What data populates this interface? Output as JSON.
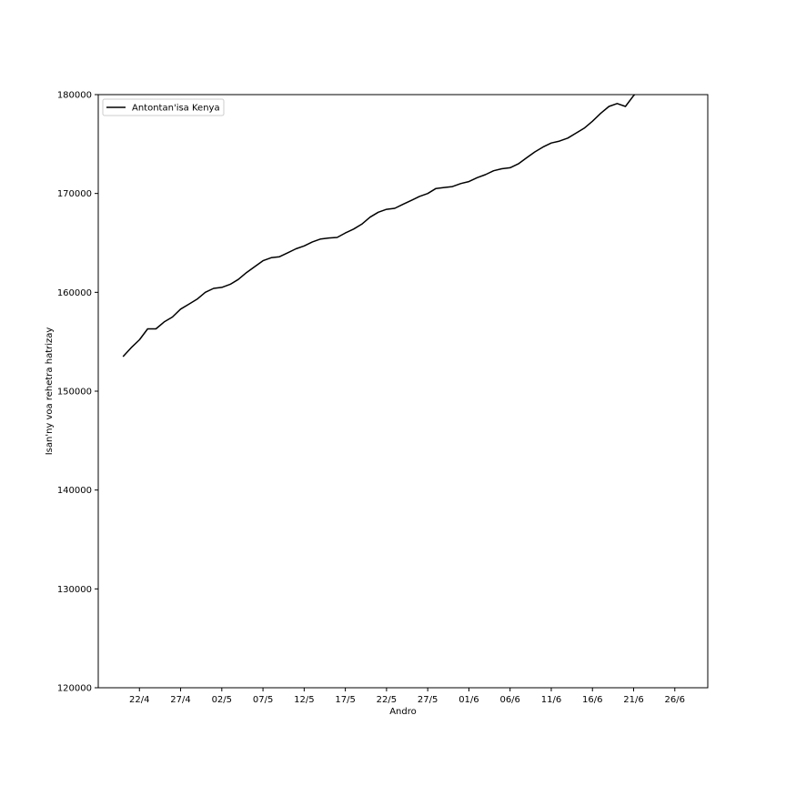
{
  "chart_data": {
    "type": "line",
    "xlabel": "Andro",
    "ylabel": "Isan'ny voa rehetra hatrizay",
    "xlim": [
      "2020-04-17",
      "2020-06-30"
    ],
    "ylim": [
      120000,
      180000
    ],
    "x_tick_labels": [
      "22/4",
      "27/4",
      "02/5",
      "07/5",
      "12/5",
      "17/5",
      "22/5",
      "27/5",
      "01/6",
      "06/6",
      "11/6",
      "16/6",
      "21/6",
      "26/6"
    ],
    "y_tick_labels": [
      "120000",
      "130000",
      "140000",
      "150000",
      "160000",
      "170000",
      "180000"
    ],
    "legend_position": "top-left",
    "series": [
      {
        "name": "Antontan'isa Kenya",
        "color": "#000000",
        "x": [
          "2020-04-20",
          "2020-04-21",
          "2020-04-22",
          "2020-04-23",
          "2020-04-24",
          "2020-04-25",
          "2020-04-26",
          "2020-04-27",
          "2020-04-28",
          "2020-04-29",
          "2020-04-30",
          "2020-05-01",
          "2020-05-02",
          "2020-05-03",
          "2020-05-04",
          "2020-05-05",
          "2020-05-06",
          "2020-05-07",
          "2020-05-08",
          "2020-05-09",
          "2020-05-10",
          "2020-05-11",
          "2020-05-12",
          "2020-05-13",
          "2020-05-14",
          "2020-05-15",
          "2020-05-16",
          "2020-05-17",
          "2020-05-18",
          "2020-05-19",
          "2020-05-20",
          "2020-05-21",
          "2020-05-22",
          "2020-05-23",
          "2020-05-24",
          "2020-05-25",
          "2020-05-26",
          "2020-05-27",
          "2020-05-28",
          "2020-05-29",
          "2020-05-30",
          "2020-05-31",
          "2020-06-01",
          "2020-06-02",
          "2020-06-03",
          "2020-06-04",
          "2020-06-05",
          "2020-06-06",
          "2020-06-07",
          "2020-06-08",
          "2020-06-09",
          "2020-06-10",
          "2020-06-11",
          "2020-06-12",
          "2020-06-13",
          "2020-06-14",
          "2020-06-15",
          "2020-06-16",
          "2020-06-17",
          "2020-06-18",
          "2020-06-19",
          "2020-06-20",
          "2020-06-21",
          "2020-06-22",
          "2020-06-23"
        ],
        "y": [
          153500,
          154400,
          155200,
          156300,
          156300,
          157000,
          157500,
          158300,
          158800,
          159300,
          160000,
          160400,
          160500,
          160800,
          161300,
          162000,
          162600,
          163200,
          163500,
          163600,
          164000,
          164400,
          164700,
          165100,
          165400,
          165500,
          165550,
          166000,
          166400,
          166900,
          167600,
          168100,
          168400,
          168500,
          168900,
          169300,
          169700,
          170000,
          170500,
          170600,
          170700,
          171000,
          171200,
          171600,
          171900,
          172300,
          172500,
          172600,
          173000,
          173600,
          174200,
          174700,
          175100,
          175300,
          175600,
          176100,
          176600,
          177300,
          178100,
          178800,
          179100,
          178800,
          179900,
          180700,
          181500
        ]
      }
    ]
  }
}
